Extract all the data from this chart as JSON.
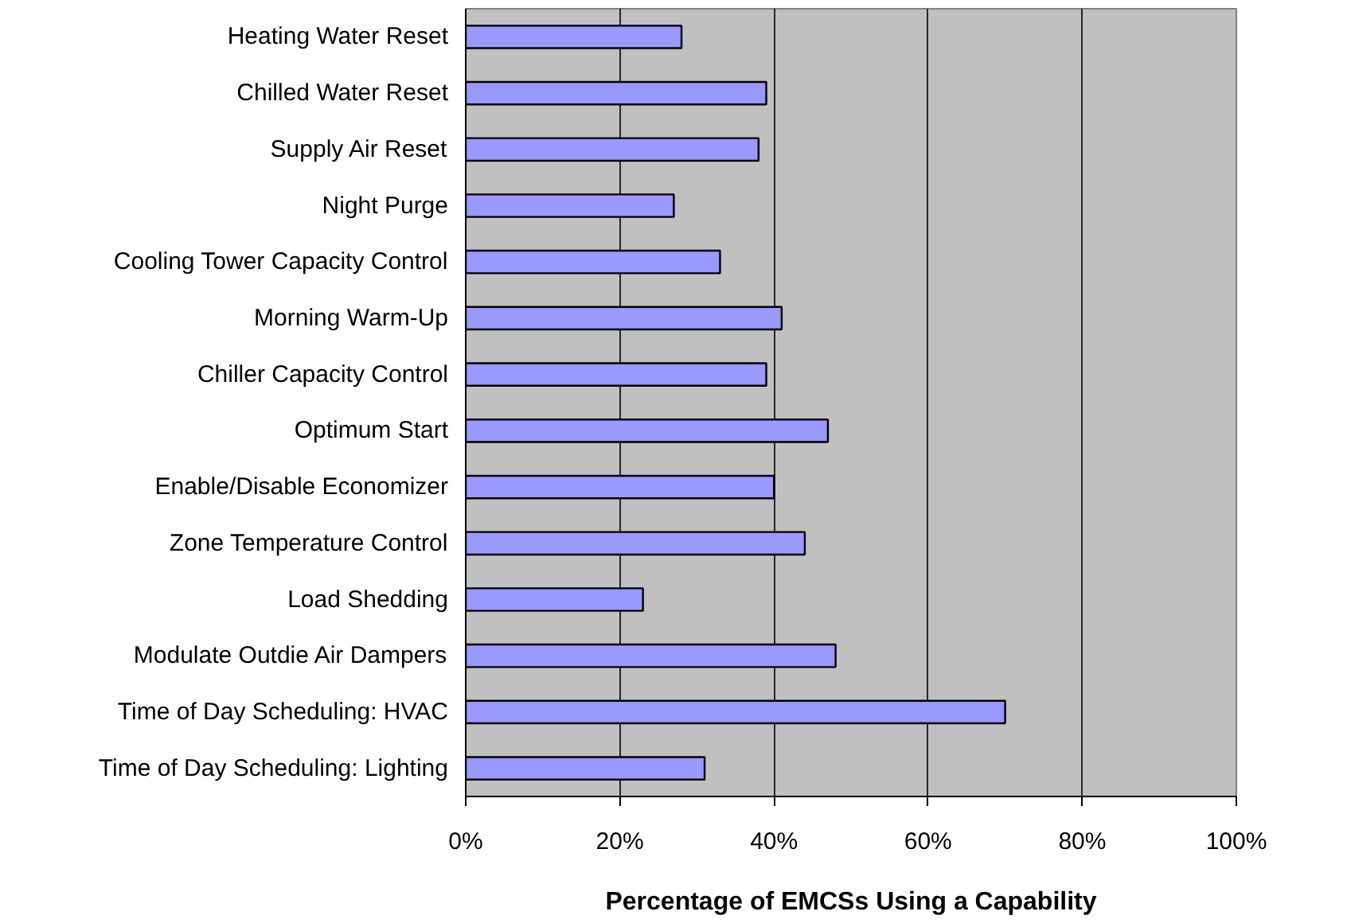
{
  "chart_data": {
    "type": "bar",
    "orientation": "horizontal",
    "xlabel": "Percentage of EMCSs Using a Capability",
    "categories": [
      "Heating Water Reset",
      "Chilled Water Reset",
      "Supply Air Reset",
      "Night Purge",
      "Cooling Tower Capacity Control",
      "Morning Warm-Up",
      "Chiller Capacity Control",
      "Optimum Start",
      "Enable/Disable Economizer",
      "Zone Temperature Control",
      "Load Shedding",
      "Modulate Outdie Air Dampers",
      "Time of Day Scheduling: HVAC",
      "Time of Day Scheduling: Lighting"
    ],
    "values": [
      28,
      39,
      38,
      27,
      33,
      41,
      39,
      47,
      40,
      44,
      23,
      48,
      70,
      31
    ],
    "color": "#9999ff",
    "xlim": [
      0,
      100
    ],
    "xticks": [
      {
        "value": 0,
        "label": "0%"
      },
      {
        "value": 20,
        "label": "20%"
      },
      {
        "value": 40,
        "label": "40%"
      },
      {
        "value": 60,
        "label": "60%"
      },
      {
        "value": 80,
        "label": "80%"
      },
      {
        "value": 100,
        "label": "100%"
      }
    ],
    "grid": "x"
  }
}
